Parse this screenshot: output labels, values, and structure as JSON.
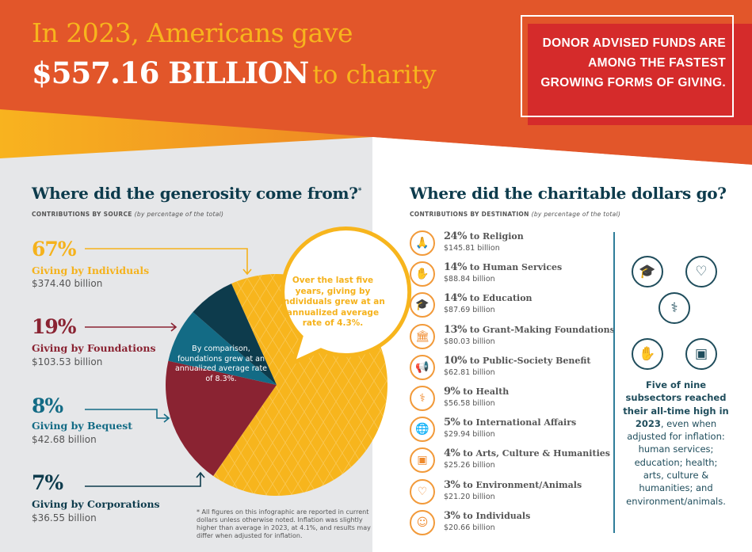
{
  "banner": {
    "line1": "In 2023, Americans gave",
    "amount": "$557.16 BILLION",
    "suffix": "to charity",
    "callout": "DONOR ADVISED FUNDS ARE AMONG THE FASTEST GROWING FORMS OF GIVING."
  },
  "sources": {
    "title": "Where did the generosity come from?",
    "asterisk": "*",
    "subtitle": "CONTRIBUTIONS BY SOURCE",
    "subtitle_note": "(by percentage of the total)",
    "items": [
      {
        "pct": "67%",
        "label": "Giving by Individuals",
        "value": "$374.40 billion"
      },
      {
        "pct": "19%",
        "label": "Giving by Foundations",
        "value": "$103.53 billion"
      },
      {
        "pct": "8%",
        "label": "Giving by Bequest",
        "value": "$42.68 billion"
      },
      {
        "pct": "7%",
        "label": "Giving by Corporations",
        "value": "$36.55 billion"
      }
    ],
    "bubble": "Over the last five years, giving by individuals grew at an annualized average rate of 4.3%.",
    "foundations_note": "By comparison, foundations grew at an annualized average rate of 8.3%.",
    "footnote": "* All figures on this infographic are reported in current dollars unless otherwise noted. Inflation was slightly higher than average in 2023, at 4.1%, and results may differ when adjusted for inflation."
  },
  "chart_data": {
    "type": "pie",
    "title": "Contributions by source",
    "categories": [
      "Individuals",
      "Foundations",
      "Bequest",
      "Corporations"
    ],
    "values": [
      67,
      19,
      8,
      7
    ],
    "amounts_billion": [
      374.4,
      103.53,
      42.68,
      36.55
    ],
    "colors": [
      "#f7b51d",
      "#8a2332",
      "#136b85",
      "#0d3b4c"
    ]
  },
  "destinations": {
    "title": "Where did the charitable dollars go?",
    "subtitle": "CONTRIBUTIONS BY DESTINATION",
    "subtitle_note": "(by percentage of the total)",
    "items": [
      {
        "pct": "24%",
        "label": "to Religion",
        "value": "$145.81 billion",
        "icon": "praying-hands"
      },
      {
        "pct": "14%",
        "label": "to Human Services",
        "value": "$88.84 billion",
        "icon": "helping-hands"
      },
      {
        "pct": "14%",
        "label": "to Education",
        "value": "$87.69 billion",
        "icon": "graduation-cap"
      },
      {
        "pct": "13%",
        "label": "to Grant-Making Foundations",
        "value": "$80.03 billion",
        "icon": "bank-building"
      },
      {
        "pct": "10%",
        "label": "to Public-Society Benefit",
        "value": "$62.81 billion",
        "icon": "megaphone"
      },
      {
        "pct": "9%",
        "label": "to Health",
        "value": "$56.58 billion",
        "icon": "stethoscope"
      },
      {
        "pct": "5%",
        "label": "to International Affairs",
        "value": "$29.94 billion",
        "icon": "globe"
      },
      {
        "pct": "4%",
        "label": "to Arts, Culture & Humanities",
        "value": "$25.26 billion",
        "icon": "museum-frame"
      },
      {
        "pct": "3%",
        "label": "to Environment/Animals",
        "value": "$21.20 billion",
        "icon": "heart-leaf"
      },
      {
        "pct": "3%",
        "label": "to Individuals",
        "value": "$20.66 billion",
        "icon": "person"
      }
    ]
  },
  "highlight": {
    "bold": "Five of nine subsectors reached their all-time high in 2023",
    "rest": ", even when adjusted for inflation: human services; education; health; arts, culture & humanities; and environment/animals."
  }
}
